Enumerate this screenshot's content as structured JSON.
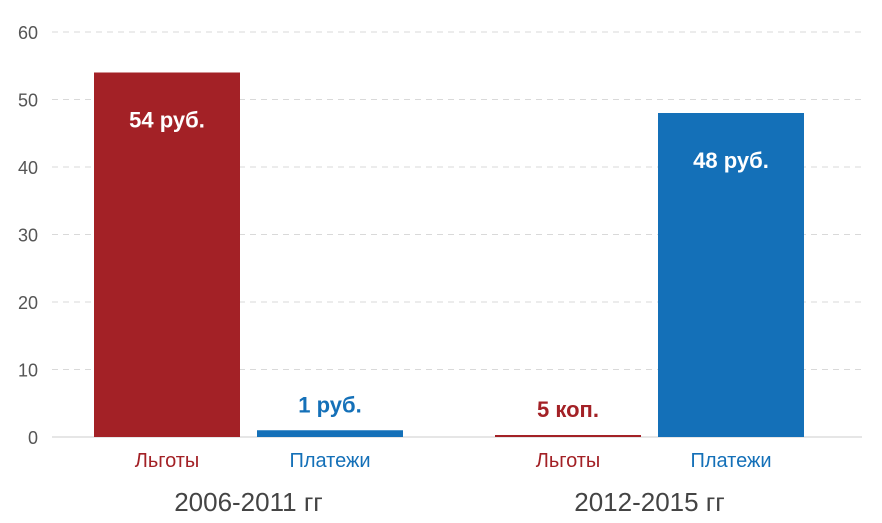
{
  "chart_data": {
    "type": "bar",
    "ylim": [
      0,
      60
    ],
    "yticks": [
      0,
      10,
      20,
      30,
      40,
      50,
      60
    ],
    "grid": true,
    "colors": {
      "benefits": "#a32126",
      "payments": "#1470b8"
    },
    "groups": [
      {
        "label": "2006-2011 гг",
        "bars": [
          {
            "category": "Льготы",
            "value": 54,
            "label": "54 руб.",
            "color": "#a32126"
          },
          {
            "category": "Платежи",
            "value": 1,
            "label": "1 руб.",
            "color": "#1470b8"
          }
        ]
      },
      {
        "label": "2012-2015 гг",
        "bars": [
          {
            "category": "Льготы",
            "value": 0.05,
            "label": "5 коп.",
            "color": "#a32126"
          },
          {
            "category": "Платежи",
            "value": 48,
            "label": "48 руб.",
            "color": "#1470b8"
          }
        ]
      }
    ]
  }
}
